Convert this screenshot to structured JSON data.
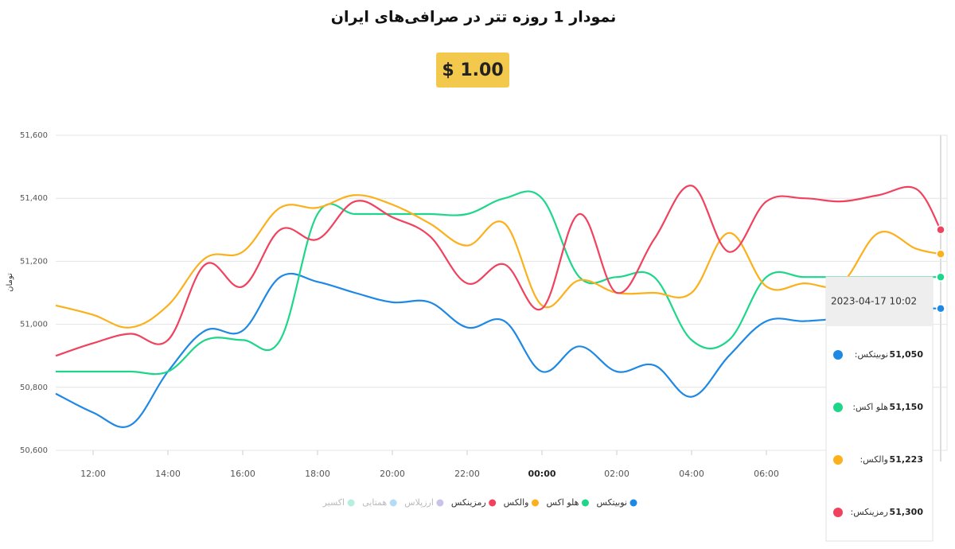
{
  "chart_data": {
    "type": "line",
    "title": "نمودار 1 روزه تتر در صرافی‌های ایران",
    "price": "$ 1.00",
    "y_label": "تومان",
    "x": [
      11,
      12,
      13,
      14,
      15,
      16,
      17,
      18,
      19,
      20,
      21,
      22,
      23,
      24,
      25,
      26,
      27,
      28,
      29,
      30,
      31,
      32,
      33,
      34,
      34.66
    ],
    "xlim": [
      11,
      34.83
    ],
    "xticks": [
      {
        "value": 12,
        "label": "12:00"
      },
      {
        "value": 14,
        "label": "14:00"
      },
      {
        "value": 16,
        "label": "16:00"
      },
      {
        "value": 18,
        "label": "18:00"
      },
      {
        "value": 20,
        "label": "20:00"
      },
      {
        "value": 22,
        "label": "22:00"
      },
      {
        "value": 24,
        "label": "00:00"
      },
      {
        "value": 26,
        "label": "02:00"
      },
      {
        "value": 28,
        "label": "04:00"
      },
      {
        "value": 30,
        "label": "06:00"
      }
    ],
    "ylim": [
      50600,
      51600
    ],
    "yticks": [
      {
        "value": 50600,
        "label": "50,600"
      },
      {
        "value": 50800,
        "label": "50,800"
      },
      {
        "value": 51000,
        "label": "51,000"
      },
      {
        "value": 51200,
        "label": "51,200"
      },
      {
        "value": 51400,
        "label": "51,400"
      },
      {
        "value": 51600,
        "label": "51,600"
      }
    ],
    "grid": true,
    "series": [
      {
        "name": "نوبیتکس",
        "color": "#1e88e5",
        "values": [
          50780,
          50720,
          50680,
          50850,
          50980,
          50980,
          51150,
          51135,
          51100,
          51070,
          51070,
          50990,
          51010,
          50850,
          50930,
          50850,
          50870,
          50770,
          50900,
          51010,
          51010,
          51020,
          51040,
          51050,
          51050
        ]
      },
      {
        "name": "هلو اکس",
        "color": "#1ed68a",
        "values": [
          50850,
          50850,
          50850,
          50850,
          50950,
          50950,
          50950,
          51350,
          51350,
          51350,
          51350,
          51350,
          51400,
          51400,
          51150,
          51150,
          51150,
          50950,
          50950,
          51150,
          51150,
          51150,
          51150,
          51150,
          51150
        ]
      },
      {
        "name": "والکس",
        "color": "#fbb01c",
        "values": [
          51060,
          51030,
          50990,
          51060,
          51210,
          51230,
          51370,
          51370,
          51410,
          51380,
          51320,
          51250,
          51320,
          51060,
          51140,
          51100,
          51100,
          51100,
          51290,
          51120,
          51130,
          51130,
          51290,
          51240,
          51223
        ]
      },
      {
        "name": "رمزینکس",
        "color": "#f0425e",
        "values": [
          50900,
          50940,
          50970,
          50950,
          51190,
          51120,
          51300,
          51270,
          51390,
          51340,
          51280,
          51130,
          51190,
          51050,
          51350,
          51100,
          51270,
          51440,
          51230,
          51390,
          51400,
          51390,
          51410,
          51430,
          51300
        ]
      },
      {
        "name": "ارزپلاس",
        "color": "#c9c3ea",
        "hidden": true,
        "values": [
          null,
          null,
          null,
          null,
          null,
          null,
          null,
          null,
          null,
          null,
          null,
          null,
          null,
          null,
          null,
          null,
          null,
          null,
          null,
          null,
          null,
          null,
          null,
          null,
          null
        ]
      },
      {
        "name": "همتایی",
        "color": "#b6dcf5",
        "hidden": true,
        "values": [
          null,
          null,
          null,
          null,
          null,
          null,
          null,
          null,
          null,
          null,
          null,
          null,
          null,
          null,
          null,
          null,
          null,
          null,
          null,
          null,
          null,
          null,
          null,
          null,
          null
        ]
      },
      {
        "name": "اکسیر",
        "color": "#b8eee0",
        "hidden": true,
        "values": [
          null,
          null,
          null,
          null,
          null,
          null,
          null,
          null,
          null,
          null,
          null,
          null,
          null,
          null,
          null,
          null,
          null,
          null,
          null,
          null,
          null,
          null,
          null,
          null,
          null
        ]
      }
    ],
    "tooltip": {
      "title": "2023-04-17 10:02",
      "items": [
        {
          "name": "نوبیتکس:",
          "value": 51050,
          "label": "51,050"
        },
        {
          "name": "هلو اکس:",
          "value": 51150,
          "label": "51,150"
        },
        {
          "name": "والکس:",
          "value": 51223,
          "label": "51,223"
        },
        {
          "name": "رمزینکس:",
          "value": 51300,
          "label": "51,300"
        }
      ]
    }
  }
}
